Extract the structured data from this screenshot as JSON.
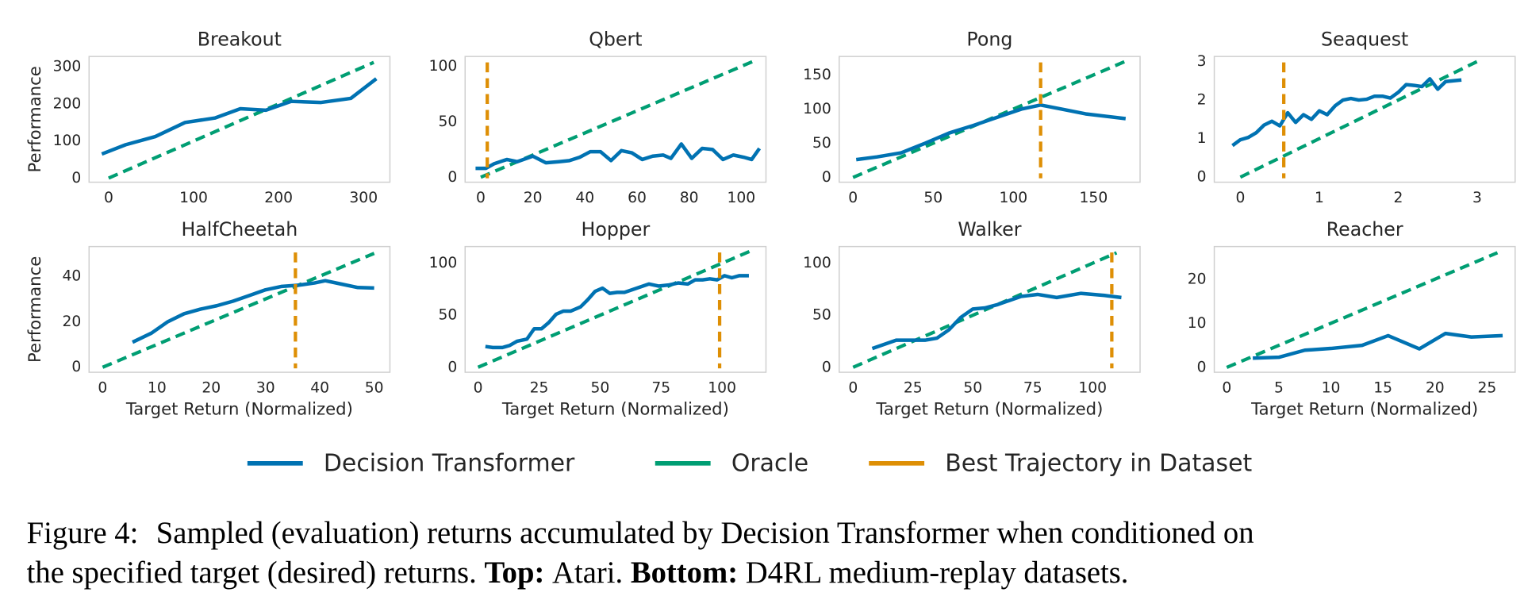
{
  "chart_data": [
    {
      "type": "line",
      "title": "Breakout",
      "ylabel": "Performance",
      "xlim": [
        -23,
        331
      ],
      "ylim": [
        -11,
        328
      ],
      "xticks": [
        0,
        100,
        200,
        300
      ],
      "yticks": [
        0,
        100,
        200,
        300
      ],
      "grid": false,
      "series": [
        {
          "name": "Decision Transformer",
          "color": "#0072b2",
          "x": [
            -8,
            20,
            55,
            90,
            125,
            155,
            185,
            215,
            250,
            285,
            315
          ],
          "values": [
            65,
            90,
            112,
            150,
            162,
            187,
            183,
            207,
            204,
            215,
            268
          ]
        },
        {
          "name": "Oracle",
          "color": "#009e73",
          "dashed": true,
          "x": [
            0,
            312
          ],
          "values": [
            0,
            312
          ]
        }
      ]
    },
    {
      "type": "line",
      "title": "Qbert",
      "xlim": [
        -6,
        109.5
      ],
      "ylim": [
        -4.5,
        109
      ],
      "xticks": [
        0,
        20,
        40,
        60,
        80,
        100
      ],
      "yticks": [
        0,
        50,
        100
      ],
      "grid": false,
      "series": [
        {
          "name": "Decision Transformer",
          "color": "#0072b2",
          "x": [
            -2,
            2,
            5,
            10,
            14,
            20,
            25,
            30,
            34,
            38,
            42,
            46,
            50,
            54,
            58,
            62,
            66,
            70,
            73,
            77,
            81,
            85,
            89,
            93,
            97,
            101,
            104,
            107
          ],
          "values": [
            8,
            8,
            12,
            16,
            14,
            19,
            13,
            14,
            15,
            18,
            23,
            23,
            15,
            24,
            22,
            16,
            19,
            20,
            17,
            30,
            17,
            26,
            25,
            16,
            20,
            18,
            16,
            26
          ]
        },
        {
          "name": "Oracle",
          "color": "#009e73",
          "dashed": true,
          "x": [
            0,
            105
          ],
          "values": [
            0,
            105
          ]
        }
      ],
      "vline": {
        "name": "Best Trajectory in Dataset",
        "color": "#de8f05",
        "x": 2.5
      }
    },
    {
      "type": "line",
      "title": "Pong",
      "xlim": [
        -8.6,
        179
      ],
      "ylim": [
        -7,
        177
      ],
      "xticks": [
        0,
        50,
        100,
        150
      ],
      "yticks": [
        0,
        50,
        100,
        150
      ],
      "grid": false,
      "series": [
        {
          "name": "Decision Transformer",
          "color": "#0072b2",
          "x": [
            2,
            15,
            30,
            45,
            60,
            75,
            90,
            105,
            117,
            130,
            145,
            170
          ],
          "values": [
            26,
            30,
            36,
            50,
            65,
            76,
            88,
            100,
            106,
            100,
            93,
            86
          ]
        },
        {
          "name": "Oracle",
          "color": "#009e73",
          "dashed": true,
          "x": [
            0,
            170
          ],
          "values": [
            0,
            170
          ]
        }
      ],
      "vline": {
        "name": "Best Trajectory in Dataset",
        "color": "#de8f05",
        "x": 117
      }
    },
    {
      "type": "line",
      "title": "Seaquest",
      "xlim": [
        -0.33,
        3.48
      ],
      "ylim": [
        -0.13,
        3.13
      ],
      "xticks": [
        0,
        1,
        2,
        3
      ],
      "yticks": [
        0,
        1,
        2,
        3
      ],
      "grid": false,
      "series": [
        {
          "name": "Decision Transformer",
          "color": "#0072b2",
          "x": [
            -0.1,
            0,
            0.1,
            0.2,
            0.3,
            0.4,
            0.5,
            0.6,
            0.7,
            0.8,
            0.9,
            1.0,
            1.1,
            1.2,
            1.3,
            1.4,
            1.5,
            1.6,
            1.7,
            1.8,
            1.9,
            2.0,
            2.1,
            2.2,
            2.3,
            2.4,
            2.5,
            2.6,
            2.8
          ],
          "values": [
            0.82,
            0.97,
            1.03,
            1.15,
            1.35,
            1.45,
            1.33,
            1.67,
            1.42,
            1.62,
            1.5,
            1.72,
            1.62,
            1.85,
            2.0,
            2.04,
            2.0,
            2.02,
            2.1,
            2.1,
            2.05,
            2.2,
            2.4,
            2.38,
            2.35,
            2.55,
            2.28,
            2.48,
            2.52
          ]
        },
        {
          "name": "Oracle",
          "color": "#009e73",
          "dashed": true,
          "x": [
            0,
            3
          ],
          "values": [
            0,
            3
          ]
        }
      ],
      "vline": {
        "name": "Best Trajectory in Dataset",
        "color": "#de8f05",
        "x": 0.55
      }
    },
    {
      "type": "line",
      "title": "HalfCheetah",
      "ylabel": "Performance",
      "xlabel": "Target Return (Normalized)",
      "xlim": [
        -2.5,
        52.9
      ],
      "ylim": [
        -2.2,
        53
      ],
      "xticks": [
        0,
        10,
        20,
        30,
        40,
        50
      ],
      "yticks": [
        0,
        20,
        40
      ],
      "grid": false,
      "series": [
        {
          "name": "Decision Transformer",
          "color": "#0072b2",
          "x": [
            5.5,
            9,
            12,
            15,
            18,
            21,
            24,
            27,
            30,
            33,
            36,
            39,
            41,
            44,
            47,
            50
          ],
          "values": [
            11,
            15,
            20,
            23.5,
            25.5,
            27,
            29,
            31.5,
            34,
            35.5,
            36,
            37,
            38,
            36.5,
            35,
            34.8
          ]
        },
        {
          "name": "Oracle",
          "color": "#009e73",
          "dashed": true,
          "x": [
            0,
            50
          ],
          "values": [
            0,
            50
          ]
        }
      ],
      "vline": {
        "name": "Best Trajectory in Dataset",
        "color": "#de8f05",
        "x": 35.5
      }
    },
    {
      "type": "line",
      "title": "Hopper",
      "xlabel": "Target Return (Normalized)",
      "xlim": [
        -5.3,
        118
      ],
      "ylim": [
        -4.8,
        116
      ],
      "xticks": [
        0,
        25,
        50,
        75,
        100
      ],
      "yticks": [
        0,
        50,
        100
      ],
      "grid": false,
      "series": [
        {
          "name": "Decision Transformer",
          "color": "#0072b2",
          "x": [
            3,
            6,
            10,
            13,
            16,
            20,
            23,
            26,
            29,
            32,
            35,
            38,
            42,
            45,
            48,
            51,
            54,
            57,
            60,
            65,
            70,
            74,
            78,
            82,
            86,
            89,
            92,
            95,
            98,
            101,
            104,
            107,
            111
          ],
          "values": [
            20,
            19,
            19,
            21,
            25,
            27,
            37,
            37,
            43,
            51,
            54,
            54,
            58,
            65,
            73,
            76,
            71,
            72,
            72,
            76,
            80,
            78,
            79,
            81,
            80,
            84,
            84,
            85,
            84,
            88,
            86,
            88,
            88
          ]
        },
        {
          "name": "Oracle",
          "color": "#009e73",
          "dashed": true,
          "x": [
            0,
            112
          ],
          "values": [
            0,
            112
          ]
        }
      ],
      "vline": {
        "name": "Best Trajectory in Dataset",
        "color": "#de8f05",
        "x": 99
      }
    },
    {
      "type": "line",
      "title": "Walker",
      "xlabel": "Target Return (Normalized)",
      "xlim": [
        -5.8,
        119.8
      ],
      "ylim": [
        -4.8,
        116
      ],
      "xticks": [
        0,
        25,
        50,
        75,
        100
      ],
      "yticks": [
        0,
        50,
        100
      ],
      "grid": false,
      "series": [
        {
          "name": "Decision Transformer",
          "color": "#0072b2",
          "x": [
            8,
            13,
            18,
            24,
            30,
            35,
            40,
            45,
            50,
            55,
            60,
            65,
            70,
            77,
            85,
            95,
            105,
            112
          ],
          "values": [
            18,
            22,
            26,
            26,
            26,
            28,
            36,
            48,
            56,
            57,
            60,
            64,
            68,
            70,
            67,
            71,
            69,
            67
          ]
        },
        {
          "name": "Oracle",
          "color": "#009e73",
          "dashed": true,
          "x": [
            0,
            110
          ],
          "values": [
            0,
            110
          ]
        }
      ],
      "vline": {
        "name": "Best Trajectory in Dataset",
        "color": "#de8f05",
        "x": 108
      }
    },
    {
      "type": "line",
      "title": "Reacher",
      "xlabel": "Target Return (Normalized)",
      "xlim": [
        -1.2,
        27.7
      ],
      "ylim": [
        -1.1,
        27.4
      ],
      "xticks": [
        0,
        5,
        10,
        15,
        20,
        25
      ],
      "yticks": [
        0,
        10,
        20
      ],
      "grid": false,
      "series": [
        {
          "name": "Decision Transformer",
          "color": "#0072b2",
          "x": [
            2.5,
            5,
            7.5,
            10,
            13,
            15.5,
            18.5,
            21,
            23.5,
            26.5
          ],
          "values": [
            2.1,
            2.3,
            3.9,
            4.3,
            5,
            7.2,
            4.2,
            7.7,
            6.9,
            7.2
          ]
        },
        {
          "name": "Oracle",
          "color": "#009e73",
          "dashed": true,
          "x": [
            0,
            26
          ],
          "values": [
            0,
            26
          ]
        }
      ]
    }
  ],
  "caption": {
    "label": "Figure 4:",
    "line1": "Sampled (evaluation) returns accumulated by Decision Transformer when conditioned on",
    "line2": "the specified target (desired) returns.",
    "top_label": "Top:",
    "top_text": "Atari.",
    "bottom_label": "Bottom:",
    "bottom_text": "D4RL medium-replay datasets."
  }
}
